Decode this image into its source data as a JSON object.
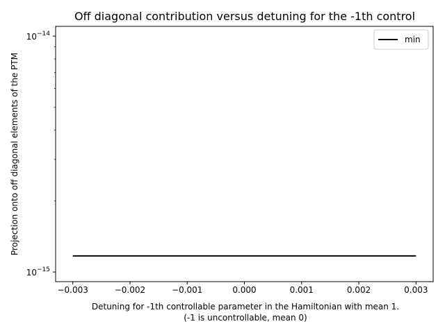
{
  "chart_data": {
    "type": "line",
    "title": "Off diagonal contribution versus detuning for the -1th control",
    "xlabel_line1": "Detuning for -1th controllable parameter in the Hamiltonian with mean 1.",
    "xlabel_line2": "(-1 is uncontrollable, mean 0)",
    "ylabel": "Projection onto off diagonal elements of the PTM",
    "xlim": [
      -0.0033,
      0.0033
    ],
    "ylim": [
      9.1e-16,
      1.1e-14
    ],
    "yscale": "log",
    "x_ticks": [
      -0.003,
      -0.002,
      -0.001,
      0.0,
      0.001,
      0.002,
      0.003
    ],
    "x_tick_labels": [
      "−0.003",
      "−0.002",
      "−0.001",
      "0.000",
      "0.001",
      "0.002",
      "0.003"
    ],
    "y_major_ticks": [
      {
        "value": 1e-15,
        "base": "10",
        "exponent": "−15"
      },
      {
        "value": 1e-14,
        "base": "10",
        "exponent": "−14"
      }
    ],
    "y_minor_ticks": [
      2e-15,
      3e-15,
      4e-15,
      5e-15,
      6e-15,
      7e-15,
      8e-15,
      9e-15
    ],
    "series": [
      {
        "name": "min",
        "color": "#000000",
        "x": [
          -0.003,
          -0.002,
          -0.001,
          0.0,
          0.001,
          0.002,
          0.003
        ],
        "y": [
          1.17e-15,
          1.17e-15,
          1.17e-15,
          1.17e-15,
          1.17e-15,
          1.17e-15,
          1.17e-15
        ]
      }
    ],
    "legend": {
      "position": "top-right",
      "entries": [
        "min"
      ]
    },
    "grid": false
  }
}
